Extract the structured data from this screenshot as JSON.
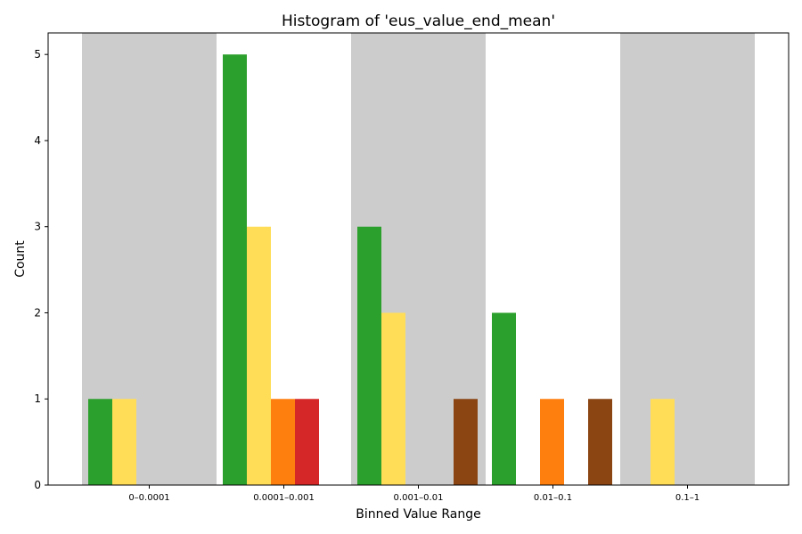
{
  "chart_data": {
    "type": "bar",
    "title": "Histogram of 'eus_value_end_mean'",
    "xlabel": "Binned Value Range",
    "ylabel": "Count",
    "categories": [
      "0–0.0001",
      "0.0001–0.001",
      "0.001–0.01",
      "0.01–0.1",
      "0.1–1"
    ],
    "ylim": [
      0,
      5.25
    ],
    "yticks": [
      0,
      1,
      2,
      3,
      4,
      5
    ],
    "grid": false,
    "legend": "none",
    "band_color": "#cccccc",
    "shaded_bands": [
      0,
      2,
      4
    ],
    "series": [
      {
        "color": "#2ca02c",
        "values": [
          1,
          5,
          3,
          2,
          0
        ]
      },
      {
        "color": "#ffdd57",
        "values": [
          1,
          3,
          2,
          0,
          1
        ]
      },
      {
        "color": "#ff7f0e",
        "values": [
          0,
          1,
          0,
          1,
          0
        ]
      },
      {
        "color": "#d62728",
        "values": [
          0,
          1,
          0,
          0,
          0
        ]
      },
      {
        "color": "#8b4513",
        "values": [
          0,
          0,
          1,
          1,
          0
        ]
      }
    ]
  }
}
